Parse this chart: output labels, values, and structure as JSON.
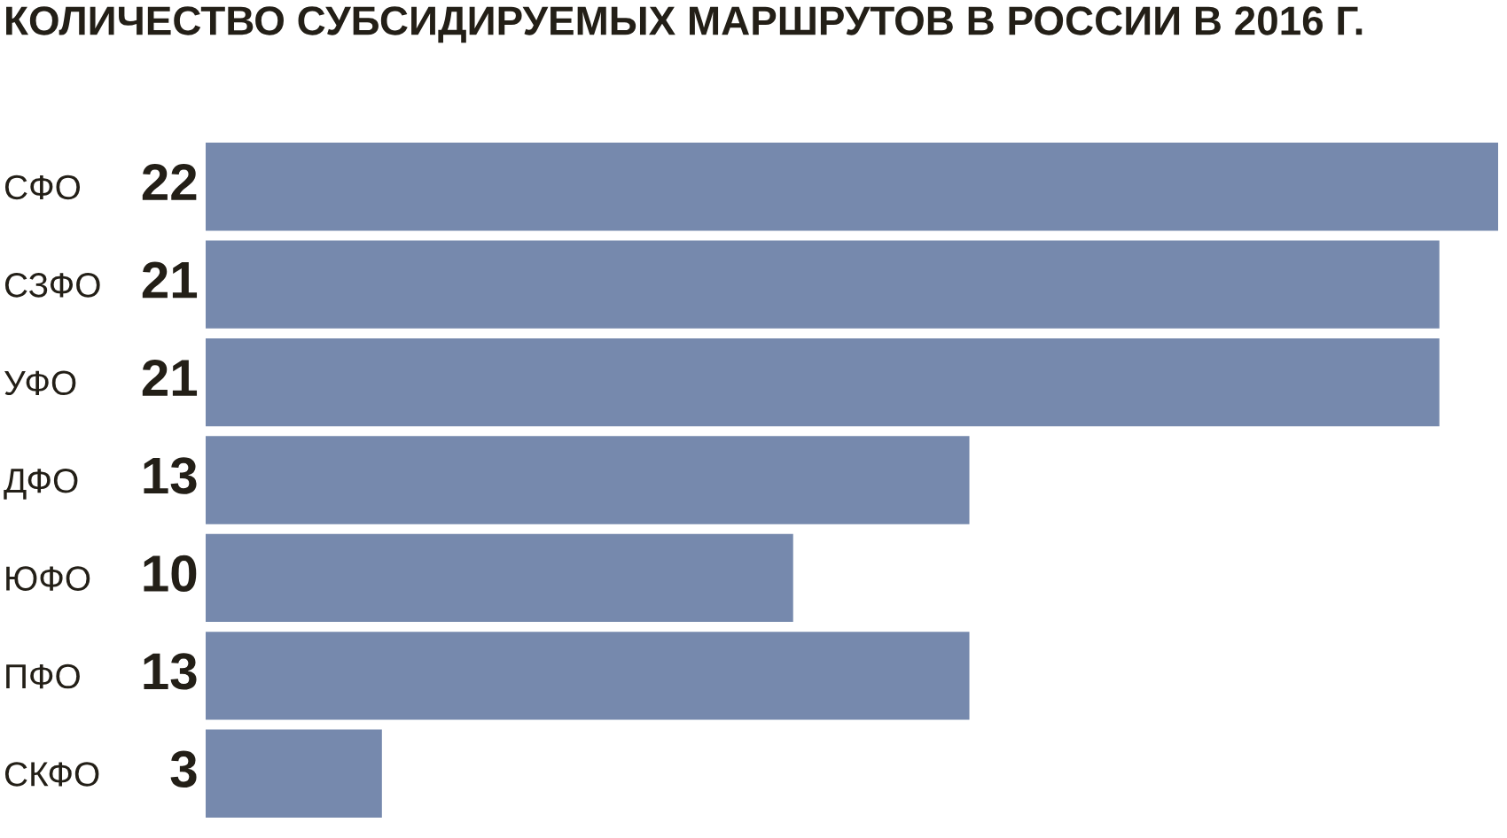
{
  "chart_data": {
    "type": "bar",
    "orientation": "horizontal",
    "title": "КОЛИЧЕСТВО СУБСИДИРУЕМЫХ МАРШРУТОВ В РОССИИ В 2016 Г.",
    "categories": [
      "СФО",
      "СЗФО",
      "УФО",
      "ДФО",
      "ЮФО",
      "ПФО",
      "СКФО"
    ],
    "values": [
      22,
      21,
      21,
      13,
      10,
      13,
      3
    ],
    "color": "#7689ad",
    "data_labels": true,
    "tick_labels": "y"
  }
}
